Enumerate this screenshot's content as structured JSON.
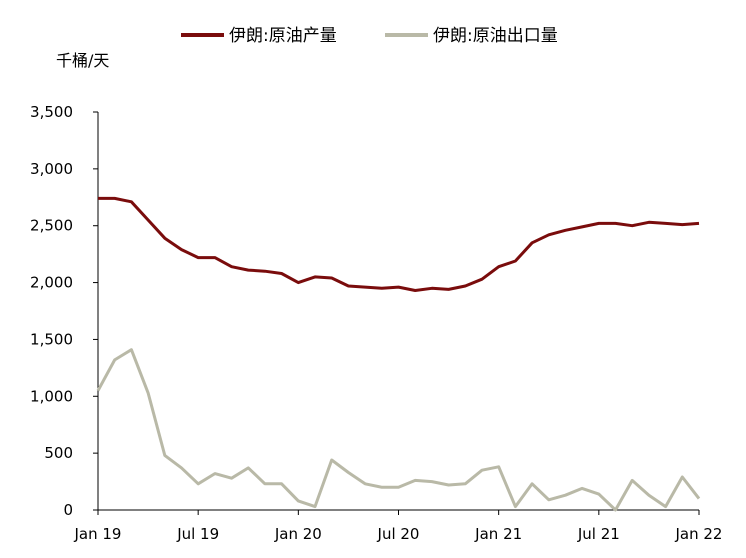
{
  "chart_data": {
    "type": "line",
    "ylabel": "千桶/天",
    "ylim": [
      0,
      3500
    ],
    "yticks": [
      0,
      500,
      1000,
      1500,
      2000,
      2500,
      3000,
      3500
    ],
    "ytick_labels": [
      "0",
      "500",
      "1,000",
      "1,500",
      "2,000",
      "2,500",
      "3,000",
      "3,500"
    ],
    "x": [
      "2019-01",
      "2019-02",
      "2019-03",
      "2019-04",
      "2019-05",
      "2019-06",
      "2019-07",
      "2019-08",
      "2019-09",
      "2019-10",
      "2019-11",
      "2019-12",
      "2020-01",
      "2020-02",
      "2020-03",
      "2020-04",
      "2020-05",
      "2020-06",
      "2020-07",
      "2020-08",
      "2020-09",
      "2020-10",
      "2020-11",
      "2020-12",
      "2021-01",
      "2021-02",
      "2021-03",
      "2021-04",
      "2021-05",
      "2021-06",
      "2021-07",
      "2021-08",
      "2021-09",
      "2021-10",
      "2021-11",
      "2021-12",
      "2022-01"
    ],
    "xtick_labels": [
      "Jan 19",
      "Jul 19",
      "Jan 20",
      "Jul 20",
      "Jan 21",
      "Jul 21",
      "Jan 22"
    ],
    "xtick_index": [
      0,
      6,
      12,
      18,
      24,
      30,
      36
    ],
    "legend_position": "top",
    "grid": false,
    "series": [
      {
        "name": "伊朗:原油产量",
        "color": "#7a0c0c",
        "values": [
          2740,
          2740,
          2710,
          2550,
          2390,
          2290,
          2220,
          2220,
          2140,
          2110,
          2100,
          2080,
          2000,
          2050,
          2040,
          1970,
          1960,
          1950,
          1960,
          1930,
          1950,
          1940,
          1970,
          2030,
          2140,
          2190,
          2350,
          2420,
          2460,
          2490,
          2520,
          2520,
          2500,
          2530,
          2520,
          2510,
          2520
        ]
      },
      {
        "name": "伊朗:原油出口量",
        "color": "#b9b9a7",
        "values": [
          1050,
          1320,
          1410,
          1030,
          480,
          370,
          230,
          320,
          280,
          370,
          230,
          230,
          80,
          30,
          440,
          330,
          230,
          200,
          200,
          260,
          250,
          220,
          230,
          350,
          380,
          30,
          230,
          90,
          130,
          190,
          140,
          0,
          260,
          130,
          30,
          290,
          100
        ]
      }
    ]
  }
}
